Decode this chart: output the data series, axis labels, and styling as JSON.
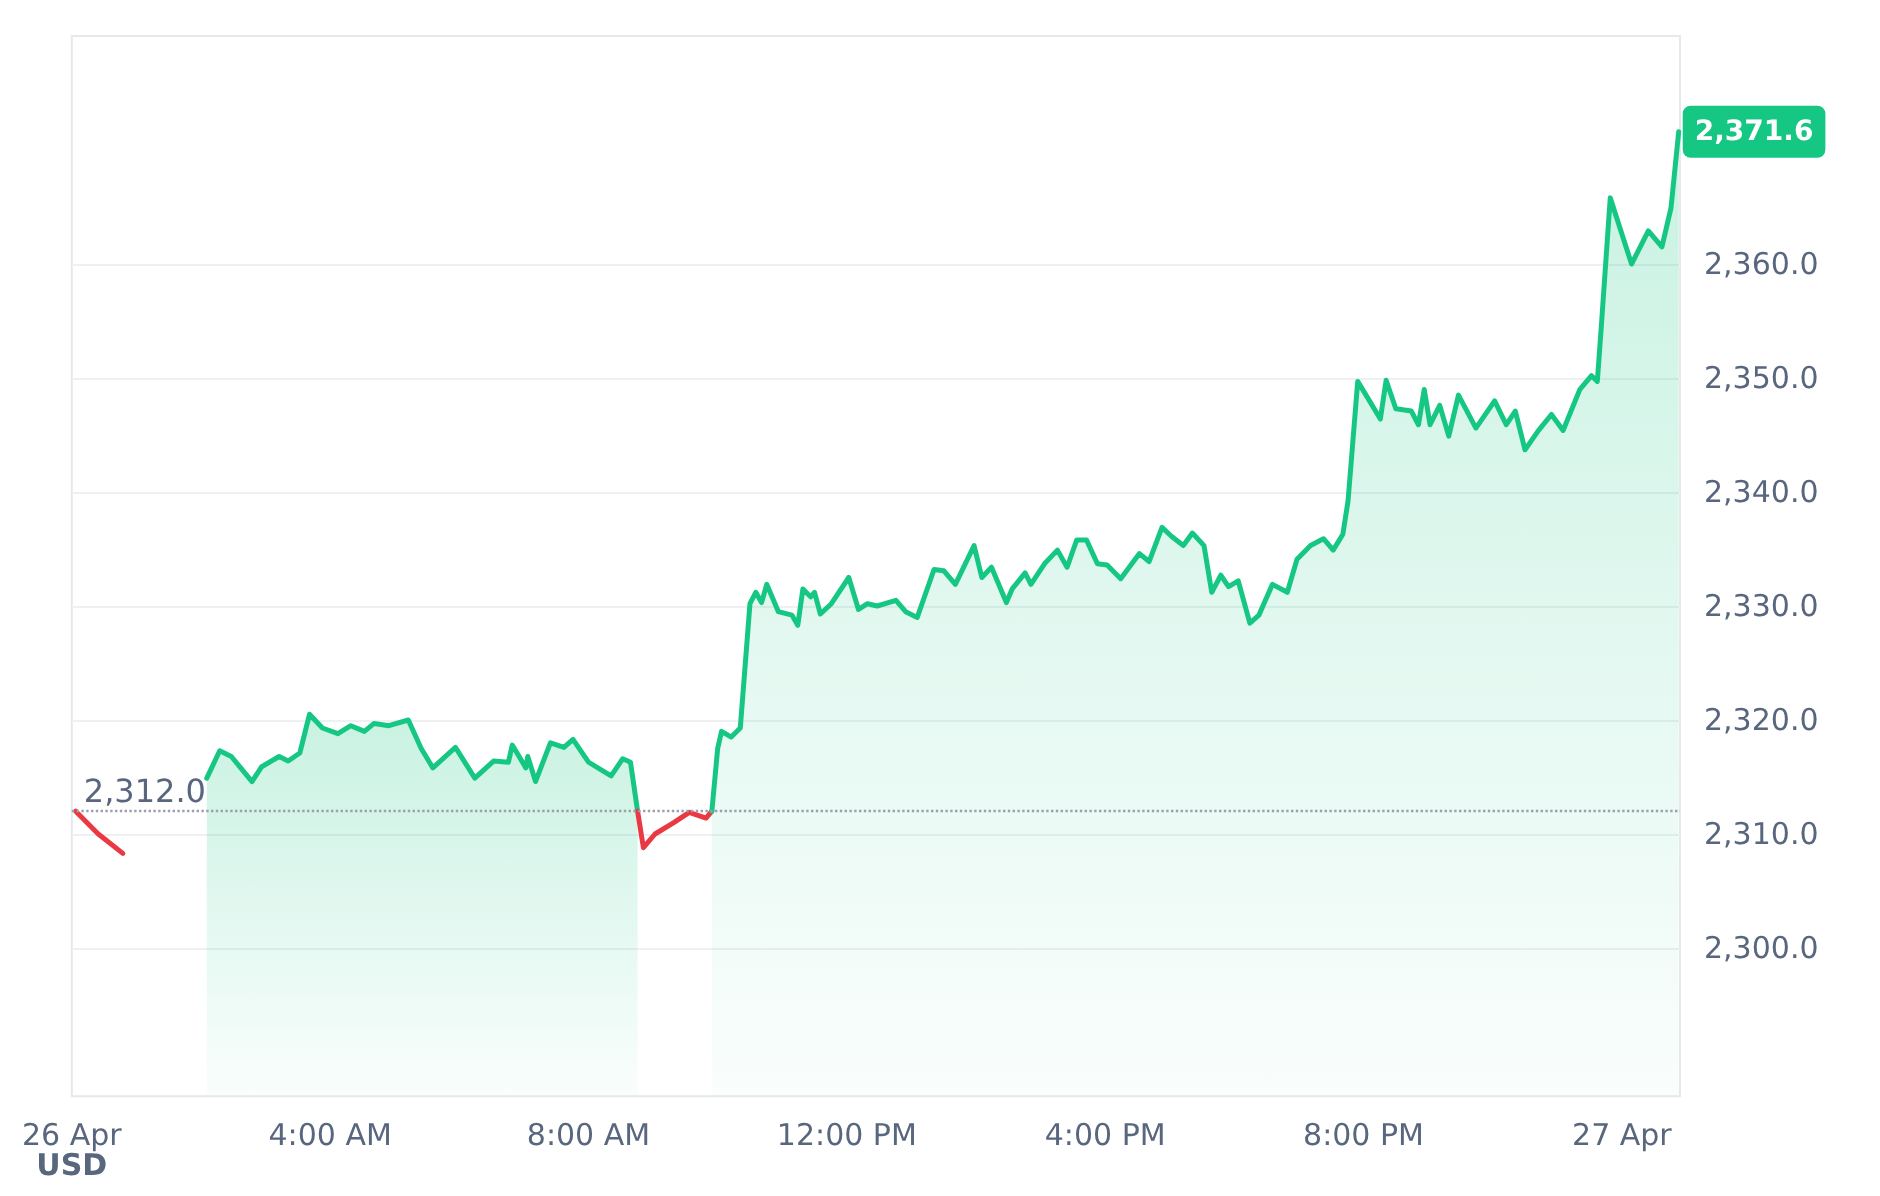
{
  "chart_data": {
    "type": "area",
    "ylabel": "USD",
    "series": [
      {
        "type": "line",
        "color": "#ea3943",
        "x": [
          0.06,
          0.41,
          0.79
        ],
        "values": [
          2312.0,
          2310.0,
          2308.3
        ]
      },
      {
        "color": "#16c784",
        "x": [
          2.09,
          2.29,
          2.47,
          2.79,
          2.94,
          3.21,
          3.35,
          3.53,
          3.68,
          3.88,
          4.12,
          4.32,
          4.53,
          4.68,
          4.91,
          5.21,
          5.41,
          5.59,
          5.94,
          6.24,
          6.53,
          6.76,
          6.82,
          7.03,
          7.06,
          7.18,
          7.41,
          7.62,
          7.76,
          8.0,
          8.35,
          8.53,
          8.65,
          8.76
        ],
        "values": [
          2314.9,
          2317.3,
          2316.8,
          2314.6,
          2315.9,
          2316.8,
          2316.4,
          2317.1,
          2320.5,
          2319.3,
          2318.8,
          2319.5,
          2319.0,
          2319.7,
          2319.5,
          2320.0,
          2317.5,
          2315.8,
          2317.6,
          2314.9,
          2316.4,
          2316.3,
          2317.8,
          2315.8,
          2316.8,
          2314.6,
          2318.0,
          2317.6,
          2318.3,
          2316.3,
          2315.1,
          2316.6,
          2316.3,
          2312.0
        ]
      },
      {
        "type": "line",
        "color": "#ea3943",
        "x": [
          8.76,
          8.85,
          9.03,
          9.32,
          9.56,
          9.82,
          9.91
        ],
        "values": [
          2312.0,
          2308.8,
          2310.0,
          2311.0,
          2311.9,
          2311.4,
          2312.0
        ]
      },
      {
        "color": "#16c784",
        "x": [
          9.91,
          10.0,
          10.06,
          10.21,
          10.35,
          10.5,
          10.59,
          10.68,
          10.76,
          10.94,
          11.15,
          11.24,
          11.32,
          11.44,
          11.5,
          11.59,
          11.76,
          12.03,
          12.18,
          12.32,
          12.47,
          12.76,
          12.91,
          13.09,
          13.35,
          13.5,
          13.68,
          13.97,
          14.09,
          14.24,
          14.47,
          14.56,
          14.76,
          14.85,
          15.06,
          15.26,
          15.41,
          15.56,
          15.71,
          15.88,
          16.03,
          16.24,
          16.53,
          16.68,
          16.88,
          17.03,
          17.21,
          17.35,
          17.53,
          17.65,
          17.79,
          17.91,
          18.06,
          18.24,
          18.38,
          18.59,
          18.82,
          18.97,
          19.18,
          19.38,
          19.53,
          19.68,
          19.76,
          19.91,
          20.06,
          20.26,
          20.35,
          20.5,
          20.74,
          20.85,
          20.94,
          21.03,
          21.18,
          21.32,
          21.47,
          21.74,
          22.03,
          22.21,
          22.35,
          22.5,
          22.71,
          22.91,
          23.09,
          23.35,
          23.53,
          23.62,
          23.68,
          23.82,
          24.15,
          24.41,
          24.62,
          24.76,
          24.88
        ],
        "values": [
          2312.0,
          2317.5,
          2319.0,
          2318.5,
          2319.3,
          2330.2,
          2331.2,
          2330.3,
          2331.9,
          2329.5,
          2329.2,
          2328.3,
          2331.5,
          2330.8,
          2331.2,
          2329.3,
          2330.2,
          2332.5,
          2329.7,
          2330.2,
          2330.0,
          2330.5,
          2329.5,
          2329.0,
          2333.2,
          2333.1,
          2331.9,
          2335.3,
          2332.5,
          2333.4,
          2330.3,
          2331.5,
          2332.9,
          2331.9,
          2333.7,
          2334.9,
          2333.4,
          2335.8,
          2335.8,
          2333.7,
          2333.6,
          2332.4,
          2334.6,
          2333.9,
          2336.9,
          2336.1,
          2335.3,
          2336.4,
          2335.3,
          2331.2,
          2332.7,
          2331.7,
          2332.2,
          2328.5,
          2329.2,
          2331.9,
          2331.2,
          2334.1,
          2335.3,
          2335.9,
          2334.9,
          2336.3,
          2339.2,
          2349.7,
          2348.3,
          2346.4,
          2349.8,
          2347.3,
          2347.1,
          2345.9,
          2349.0,
          2345.9,
          2347.6,
          2344.9,
          2348.5,
          2345.6,
          2348.0,
          2345.9,
          2347.1,
          2343.7,
          2345.4,
          2346.8,
          2345.4,
          2349.0,
          2350.2,
          2349.7,
          2354.4,
          2365.8,
          2360.0,
          2362.9,
          2361.5,
          2364.9,
          2371.6
        ]
      }
    ],
    "xlim": [
      0,
      24.9
    ],
    "xticks": [
      {
        "value": 0,
        "label": "26 Apr"
      },
      {
        "value": 4,
        "label": "4:00 AM"
      },
      {
        "value": 8,
        "label": "8:00 AM"
      },
      {
        "value": 12,
        "label": "12:00 PM"
      },
      {
        "value": 16,
        "label": "4:00 PM"
      },
      {
        "value": 20,
        "label": "8:00 PM"
      },
      {
        "value": 24,
        "label": "27 Apr"
      }
    ],
    "ylim": [
      2287,
      2380
    ],
    "yticks": [
      {
        "value": 2300,
        "label": "2,300.0"
      },
      {
        "value": 2310,
        "label": "2,310.0"
      },
      {
        "value": 2320,
        "label": "2,320.0"
      },
      {
        "value": 2330,
        "label": "2,330.0"
      },
      {
        "value": 2340,
        "label": "2,340.0"
      },
      {
        "value": 2350,
        "label": "2,350.0"
      },
      {
        "value": 2360,
        "label": "2,360.0"
      }
    ],
    "ref_lines": [
      {
        "axis": "y",
        "value": 2312.0,
        "label": "2,312.0",
        "color": "#9aa0ac",
        "line_style": "dotted"
      }
    ],
    "annotations": [
      {
        "text": "2,371.6",
        "x": 24.88,
        "y": 2371.6
      }
    ],
    "grid": "y",
    "marker": "none",
    "line_style": "solid"
  }
}
